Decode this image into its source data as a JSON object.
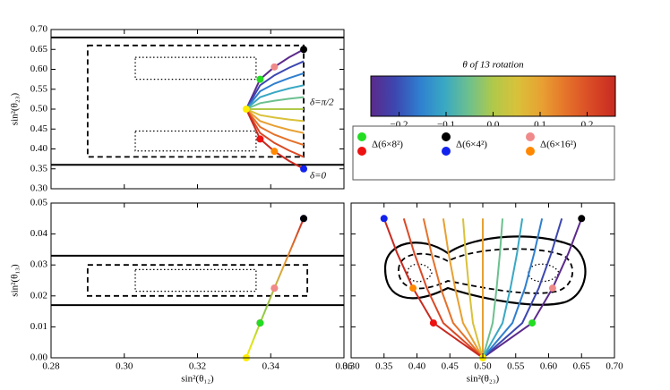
{
  "charts": [
    {
      "type": "line",
      "x_axis_label": null,
      "y_axis_label": "sin²(θ₂₃)",
      "xlim": [
        0.28,
        0.36
      ],
      "ylim": [
        0.3,
        0.7
      ],
      "x_tick_labels": false,
      "xticks": [
        0.28,
        0.3,
        0.32,
        0.34,
        0.36
      ],
      "yticks": [
        {
          "value": 0.3,
          "label": "0.30"
        },
        {
          "value": 0.35,
          "label": "0.35"
        },
        {
          "value": 0.4,
          "label": "0.40"
        },
        {
          "value": 0.45,
          "label": "0.45"
        },
        {
          "value": 0.5,
          "label": "0.50"
        },
        {
          "value": 0.55,
          "label": "0.55"
        },
        {
          "value": 0.6,
          "label": "0.60"
        },
        {
          "value": 0.65,
          "label": "0.65"
        },
        {
          "value": 0.7,
          "label": "0.70"
        }
      ],
      "hlines": [
        0.68,
        0.36
      ],
      "dashed_box": [
        0.29,
        0.349,
        0.38,
        0.66
      ],
      "dotted_boxes": [
        [
          0.303,
          0.336,
          0.575,
          0.63
        ],
        [
          0.303,
          0.336,
          0.395,
          0.445
        ]
      ],
      "annotations": [
        "δ=π/2",
        "δ=0"
      ],
      "x": [
        0.3333,
        0.3371,
        0.341,
        0.345,
        0.349
      ],
      "series": [
        {
          "color": "#5b2a8c",
          "values": [
            0.5,
            0.575,
            0.606,
            0.63,
            0.65
          ]
        },
        {
          "color": "#3c47b0",
          "values": [
            0.5,
            0.56,
            0.585,
            0.604,
            0.62
          ]
        },
        {
          "color": "#2f7fcf",
          "values": [
            0.5,
            0.545,
            0.564,
            0.578,
            0.59
          ]
        },
        {
          "color": "#39a8c4",
          "values": [
            0.5,
            0.53,
            0.542,
            0.552,
            0.56
          ]
        },
        {
          "color": "#6cc08e",
          "values": [
            0.5,
            0.515,
            0.521,
            0.526,
            0.53
          ]
        },
        {
          "color": "#b0c94a",
          "values": [
            0.5,
            0.5,
            0.5,
            0.5,
            0.5
          ]
        },
        {
          "color": "#d9c13a",
          "values": [
            0.5,
            0.485,
            0.479,
            0.474,
            0.47
          ]
        },
        {
          "color": "#e8a032",
          "values": [
            0.5,
            0.47,
            0.458,
            0.448,
            0.44
          ]
        },
        {
          "color": "#e5722a",
          "values": [
            0.5,
            0.455,
            0.436,
            0.422,
            0.41
          ]
        },
        {
          "color": "#d94a26",
          "values": [
            0.5,
            0.44,
            0.415,
            0.396,
            0.38
          ]
        },
        {
          "color": "#c82a20",
          "values": [
            0.5,
            0.425,
            0.394,
            0.37,
            0.35
          ]
        }
      ],
      "points": {
        "x": [
          0.3333,
          0.3371,
          0.3371,
          0.341,
          0.341,
          0.349,
          0.349
        ],
        "y": [
          0.5,
          0.425,
          0.575,
          0.394,
          0.606,
          0.35,
          0.65
        ],
        "colors": [
          "#ffee00",
          "#ee1111",
          "#22dd22",
          "#ff8800",
          "#f08a8a",
          "#1122ee",
          "#000000"
        ]
      }
    },
    {
      "type": "colorbar",
      "title": "θ of 13 rotation",
      "lim": [
        -0.26,
        0.26
      ],
      "ticks": [
        {
          "value": -0.2,
          "label": "−0.2"
        },
        {
          "value": -0.1,
          "label": "−0.1"
        },
        {
          "value": 0,
          "label": "0.0"
        },
        {
          "value": 0.1,
          "label": "0.1"
        },
        {
          "value": 0.2,
          "label": "0.2"
        }
      ],
      "colors": [
        "#5b2a8c",
        "#3c47b0",
        "#2f7fcf",
        "#39a8c4",
        "#6cc08e",
        "#b0c94a",
        "#d9c13a",
        "#e8a032",
        "#e5722a",
        "#d94a26",
        "#c82a20"
      ]
    },
    {
      "type": "legend",
      "items": [
        {
          "label": "Δ(6×8²)",
          "colors": [
            "#22dd22",
            "#ee1111"
          ]
        },
        {
          "label": "Δ(6×4²)",
          "colors": [
            "#000000",
            "#1122ee"
          ]
        },
        {
          "label": "Δ(6×16²)",
          "colors": [
            "#f08a8a",
            "#ff8800"
          ]
        }
      ]
    },
    {
      "type": "line",
      "x_axis_label": "sin²(θ₁₂)",
      "y_axis_label": "sin²(θ₁₃)",
      "xlim": [
        0.28,
        0.36
      ],
      "ylim": [
        0,
        0.05
      ],
      "xticks": [
        {
          "value": 0.28,
          "label": "0.28"
        },
        {
          "value": 0.3,
          "label": "0.30"
        },
        {
          "value": 0.32,
          "label": "0.32"
        },
        {
          "value": 0.34,
          "label": "0.34"
        },
        {
          "value": 0.36,
          "label": "0.36"
        }
      ],
      "yticks": [
        {
          "value": 0,
          "label": "0.00"
        },
        {
          "value": 0.01,
          "label": "0.01"
        },
        {
          "value": 0.02,
          "label": "0.02"
        },
        {
          "value": 0.03,
          "label": "0.03"
        },
        {
          "value": 0.04,
          "label": "0.04"
        },
        {
          "value": 0.05,
          "label": "0.05"
        }
      ],
      "hlines": [
        0.033,
        0.017
      ],
      "dashed_box": [
        0.29,
        0.35,
        0.02,
        0.03
      ],
      "dotted_boxes": [
        [
          0.303,
          0.336,
          0.0215,
          0.0285
        ]
      ],
      "series": [
        {
          "colors": [
            "#ffee00",
            "#8cc84a",
            "#e8a032",
            "#c82a20"
          ],
          "x": [
            0.3333,
            0.3371,
            0.341,
            0.345,
            0.349
          ],
          "values": [
            0,
            0.01125,
            0.0225,
            0.03375,
            0.045
          ]
        }
      ],
      "points": {
        "x": [
          0.3333,
          0.3371,
          0.3371,
          0.341,
          0.341,
          0.349,
          0.349
        ],
        "y": [
          0,
          0.01125,
          0.01125,
          0.0225,
          0.0225,
          0.045,
          0.045
        ],
        "colors": [
          "#ffee00",
          "#ee1111",
          "#22dd22",
          "#ff8800",
          "#f08a8a",
          "#1122ee",
          "#000000"
        ]
      }
    },
    {
      "type": "line",
      "x_axis_label": "sin²(θ₂₃)",
      "y_axis_label": null,
      "xlim": [
        0.3,
        0.7
      ],
      "ylim": [
        0,
        0.05
      ],
      "y_tick_labels": false,
      "xticks": [
        {
          "value": 0.3,
          "label": "0.30"
        },
        {
          "value": 0.35,
          "label": "0.35"
        },
        {
          "value": 0.4,
          "label": "0.40"
        },
        {
          "value": 0.45,
          "label": "0.45"
        },
        {
          "value": 0.5,
          "label": "0.50"
        },
        {
          "value": 0.55,
          "label": "0.55"
        },
        {
          "value": 0.6,
          "label": "0.60"
        },
        {
          "value": 0.65,
          "label": "0.65"
        },
        {
          "value": 0.7,
          "label": "0.70"
        }
      ],
      "yticks": [
        0,
        0.01,
        0.02,
        0.03,
        0.04,
        0.05
      ],
      "y": [
        0,
        0.01125,
        0.0225,
        0.03375,
        0.045
      ],
      "series": [
        {
          "color": "#5b2a8c",
          "x": [
            0.5,
            0.575,
            0.606,
            0.63,
            0.65
          ]
        },
        {
          "color": "#3c47b0",
          "x": [
            0.5,
            0.56,
            0.585,
            0.604,
            0.62
          ]
        },
        {
          "color": "#2f7fcf",
          "x": [
            0.5,
            0.545,
            0.564,
            0.578,
            0.59
          ]
        },
        {
          "color": "#39a8c4",
          "x": [
            0.5,
            0.53,
            0.542,
            0.552,
            0.56
          ]
        },
        {
          "color": "#6cc08e",
          "x": [
            0.5,
            0.515,
            0.521,
            0.526,
            0.53
          ]
        },
        {
          "color": "#e8a032",
          "x": [
            0.5,
            0.5,
            0.5,
            0.5,
            0.5
          ]
        },
        {
          "color": "#d9c13a",
          "x": [
            0.5,
            0.485,
            0.479,
            0.474,
            0.47
          ]
        },
        {
          "color": "#e8a032",
          "x": [
            0.5,
            0.47,
            0.458,
            0.448,
            0.44
          ]
        },
        {
          "color": "#e5722a",
          "x": [
            0.5,
            0.455,
            0.436,
            0.422,
            0.41
          ]
        },
        {
          "color": "#d94a26",
          "x": [
            0.5,
            0.44,
            0.415,
            0.396,
            0.38
          ]
        },
        {
          "color": "#c82a20",
          "x": [
            0.5,
            0.425,
            0.394,
            0.37,
            0.35
          ]
        }
      ],
      "points": {
        "x": [
          0.5,
          0.425,
          0.575,
          0.394,
          0.606,
          0.35,
          0.65
        ],
        "y": [
          0,
          0.01125,
          0.01125,
          0.0225,
          0.0225,
          0.045,
          0.045
        ],
        "colors": [
          "#ffee00",
          "#ee1111",
          "#22dd22",
          "#ff8800",
          "#f08a8a",
          "#1122ee",
          "#000000"
        ]
      }
    }
  ]
}
